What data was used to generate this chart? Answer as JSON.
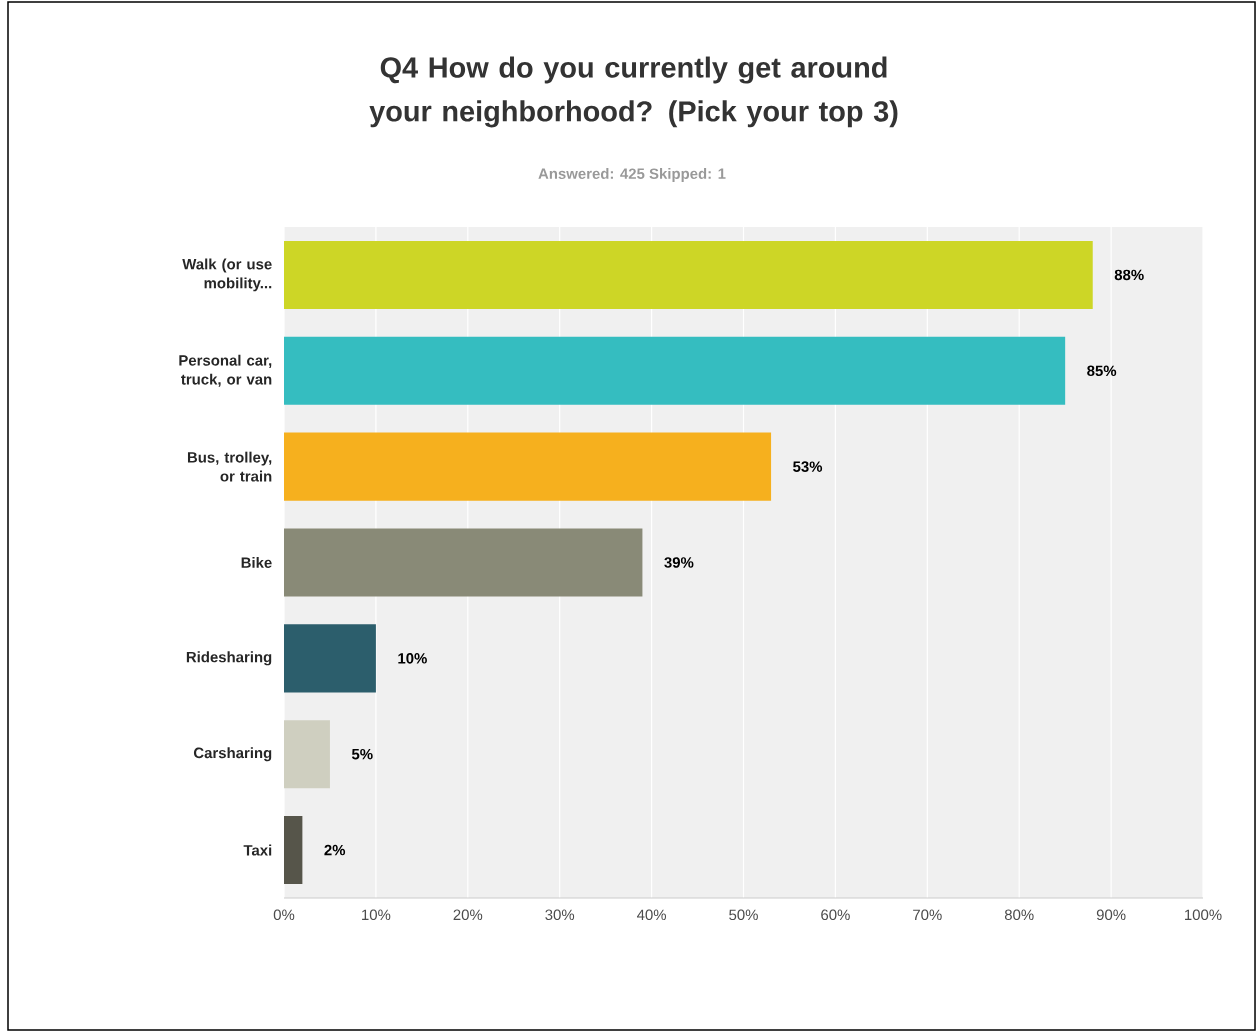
{
  "chart_data": {
    "type": "bar",
    "orientation": "horizontal",
    "title": "Q4 How do you currently get around your neighborhood? (Pick your top 3)",
    "subtitle": "Answered: 425    Skipped: 1",
    "categories": [
      "Walk (or use mobility...",
      "Personal car, truck, or van",
      "Bus, trolley, or train",
      "Bike",
      "Ridesharing",
      "Carsharing",
      "Taxi"
    ],
    "values": [
      88,
      85,
      53,
      39,
      10,
      5,
      2
    ],
    "colors": [
      "#cdd626",
      "#35bdc0",
      "#f6b01e",
      "#898a77",
      "#2c5e6c",
      "#cfcfc0",
      "#56554a"
    ],
    "value_labels": [
      "88%",
      "85%",
      "53%",
      "39%",
      "10%",
      "5%",
      "2%"
    ],
    "xlim": [
      0,
      100
    ],
    "xticks": [
      {
        "value": 0,
        "label": "0%"
      },
      {
        "value": 10,
        "label": "10%"
      },
      {
        "value": 20,
        "label": "20%"
      },
      {
        "value": 30,
        "label": "30%"
      },
      {
        "value": 40,
        "label": "40%"
      },
      {
        "value": 50,
        "label": "50%"
      },
      {
        "value": 60,
        "label": "60%"
      },
      {
        "value": 70,
        "label": "70%"
      },
      {
        "value": 80,
        "label": "80%"
      },
      {
        "value": 90,
        "label": "90%"
      },
      {
        "value": 100,
        "label": "100%"
      }
    ],
    "grid": "x"
  }
}
